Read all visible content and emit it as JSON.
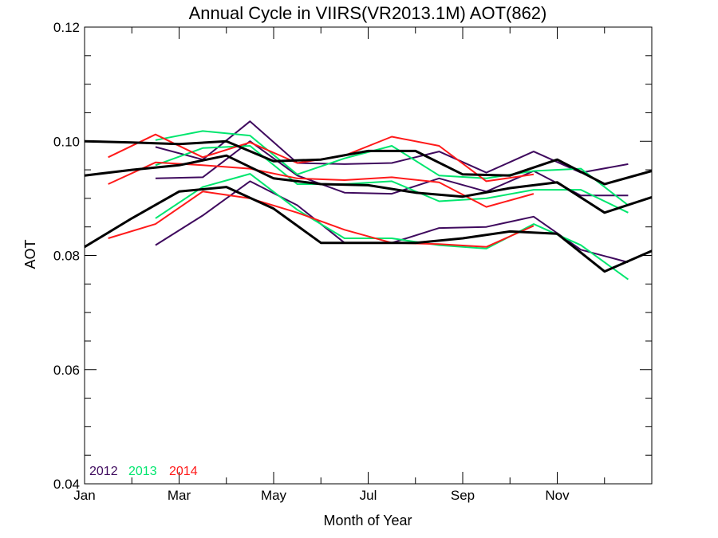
{
  "chart_data": {
    "type": "line",
    "title": "Annual Cycle in VIIRS(VR2013.1M) AOT(862)",
    "xlabel": "Month of Year",
    "ylabel": "AOT",
    "xlim": [
      1,
      13
    ],
    "ylim": [
      0.04,
      0.12
    ],
    "x_ticks": [
      {
        "value": 1,
        "label": "Jan"
      },
      {
        "value": 3,
        "label": "Mar"
      },
      {
        "value": 5,
        "label": "May"
      },
      {
        "value": 7,
        "label": "Jul"
      },
      {
        "value": 9,
        "label": "Sep"
      },
      {
        "value": 11,
        "label": "Nov"
      }
    ],
    "y_ticks": [
      {
        "value": 0.04,
        "label": "0.04"
      },
      {
        "value": 0.06,
        "label": "0.06"
      },
      {
        "value": 0.08,
        "label": "0.08"
      },
      {
        "value": 0.1,
        "label": "0.10"
      },
      {
        "value": 0.12,
        "label": "0.12"
      }
    ],
    "legend": [
      {
        "label": "2012",
        "color": "#3f0a5e"
      },
      {
        "label": "2013",
        "color": "#00e66e"
      },
      {
        "label": "2014",
        "color": "#ff1a1a"
      }
    ],
    "legend_position": "bottom-left",
    "series": [
      {
        "color": "#3f0a5e",
        "x": [
          2.5,
          3.5,
          4.5,
          5.5,
          6.5,
          7.5,
          8.5,
          9.5,
          10.5,
          11.5,
          12.5
        ],
        "y": [
          0.099,
          0.0968,
          0.1035,
          0.0962,
          0.096,
          0.0962,
          0.0982,
          0.0945,
          0.0982,
          0.0945,
          0.096
        ]
      },
      {
        "color": "#3f0a5e",
        "x": [
          2.5,
          3.5,
          4.5,
          5.5,
          6.5,
          7.5,
          8.5,
          9.5,
          10.5,
          11.5,
          12.5
        ],
        "y": [
          0.0935,
          0.0937,
          0.1,
          0.094,
          0.091,
          0.0908,
          0.0935,
          0.0912,
          0.0948,
          0.0905,
          0.0905
        ]
      },
      {
        "color": "#3f0a5e",
        "x": [
          2.5,
          3.5,
          4.5,
          5.5,
          6.5,
          7.5,
          8.5,
          9.5,
          10.5,
          11.5,
          12.5
        ],
        "y": [
          0.0818,
          0.087,
          0.093,
          0.0888,
          0.0822,
          0.0822,
          0.0848,
          0.085,
          0.0868,
          0.081,
          0.0788
        ]
      },
      {
        "color": "#00e66e",
        "x": [
          2.5,
          3.5,
          4.5,
          5.5,
          6.5,
          7.5,
          8.5,
          9.5,
          10.5,
          11.5,
          12.5
        ],
        "y": [
          0.1002,
          0.1018,
          0.101,
          0.0942,
          0.097,
          0.0992,
          0.094,
          0.0935,
          0.0948,
          0.0952,
          0.0888
        ]
      },
      {
        "color": "#00e66e",
        "x": [
          2.5,
          3.5,
          4.5,
          5.5,
          6.5,
          7.5,
          8.5,
          9.5,
          10.5,
          11.5,
          12.5
        ],
        "y": [
          0.0958,
          0.0988,
          0.0992,
          0.0925,
          0.0925,
          0.093,
          0.0895,
          0.09,
          0.0915,
          0.0915,
          0.0875
        ]
      },
      {
        "color": "#00e66e",
        "x": [
          2.5,
          3.5,
          4.5,
          5.5,
          6.5,
          7.5,
          8.5,
          9.5,
          10.5,
          11.5,
          12.5
        ],
        "y": [
          0.0865,
          0.092,
          0.0943,
          0.088,
          0.083,
          0.083,
          0.0818,
          0.0812,
          0.0855,
          0.0818,
          0.0758
        ]
      },
      {
        "color": "#ff1a1a",
        "x": [
          1.5,
          2.5,
          3.5,
          4.5,
          5.5,
          6.5,
          7.5,
          8.5,
          9.5,
          10.5
        ],
        "y": [
          0.0972,
          0.1012,
          0.0972,
          0.0998,
          0.0962,
          0.0975,
          0.1008,
          0.0992,
          0.093,
          0.0942
        ]
      },
      {
        "color": "#ff1a1a",
        "x": [
          1.5,
          2.5,
          3.5,
          4.5,
          5.5,
          6.5,
          7.5,
          8.5,
          9.5,
          10.5
        ],
        "y": [
          0.0925,
          0.0963,
          0.0958,
          0.0952,
          0.0935,
          0.0932,
          0.0937,
          0.0928,
          0.0885,
          0.0908
        ]
      },
      {
        "color": "#ff1a1a",
        "x": [
          1.5,
          2.5,
          3.5,
          4.5,
          5.5,
          6.5,
          7.5,
          8.5,
          9.5,
          10.5
        ],
        "y": [
          0.083,
          0.0855,
          0.0912,
          0.09,
          0.0875,
          0.0845,
          0.0822,
          0.082,
          0.0815,
          0.0852
        ]
      },
      {
        "color": "#000000",
        "x": [
          1,
          2,
          3,
          4,
          5,
          6,
          7,
          8,
          9,
          10,
          11,
          12,
          13
        ],
        "y": [
          0.1,
          0.0998,
          0.0995,
          0.1,
          0.0965,
          0.0968,
          0.0983,
          0.0983,
          0.0942,
          0.094,
          0.0968,
          0.0925,
          0.0948
        ]
      },
      {
        "color": "#000000",
        "x": [
          1,
          2,
          3,
          4,
          5,
          6,
          7,
          8,
          9,
          10,
          11,
          12,
          13
        ],
        "y": [
          0.094,
          0.095,
          0.0958,
          0.0975,
          0.0935,
          0.0925,
          0.0923,
          0.091,
          0.0903,
          0.0918,
          0.0928,
          0.0875,
          0.0902
        ]
      },
      {
        "color": "#000000",
        "x": [
          1,
          2,
          3,
          4,
          5,
          6,
          7,
          8,
          9,
          10,
          11,
          12,
          13
        ],
        "y": [
          0.0815,
          0.0865,
          0.0912,
          0.092,
          0.0882,
          0.0822,
          0.0822,
          0.0822,
          0.083,
          0.0842,
          0.0838,
          0.0772,
          0.0808
        ]
      }
    ]
  }
}
